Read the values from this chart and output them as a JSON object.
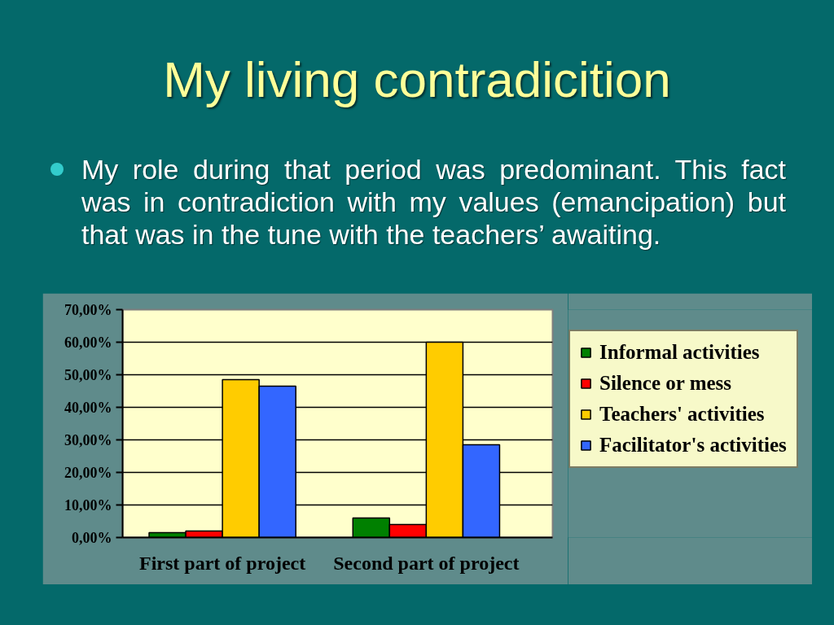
{
  "chart_data": {
    "type": "bar",
    "title": "My living contradicition",
    "annotations": [
      "My role during that period was predominant. This fact was in contradiction with my values (emancipation) but that was in the tune with the teachers’ awaiting."
    ],
    "categories": [
      "First part of project",
      "Second part of project"
    ],
    "series": [
      {
        "name": "Informal activities",
        "color": "#008000",
        "values": [
          1.5,
          6
        ]
      },
      {
        "name": "Silence or mess",
        "color": "#ff0000",
        "values": [
          2,
          4
        ]
      },
      {
        "name": "Teachers' activities",
        "color": "#ffcc00",
        "values": [
          48.5,
          60
        ]
      },
      {
        "name": "Facilitator's activities",
        "color": "#3366ff",
        "values": [
          46.5,
          28.5
        ]
      }
    ],
    "ylim": [
      0,
      70
    ],
    "yticks": [
      {
        "value": 0,
        "label": "0,00%"
      },
      {
        "value": 10,
        "label": "10,00%"
      },
      {
        "value": 20,
        "label": "20,00%"
      },
      {
        "value": 30,
        "label": "30,00%"
      },
      {
        "value": 40,
        "label": "40,00%"
      },
      {
        "value": 50,
        "label": "50,00%"
      },
      {
        "value": 60,
        "label": "60,00%"
      },
      {
        "value": 70,
        "label": "70,00%"
      }
    ],
    "grid": "y",
    "legend": "right"
  }
}
